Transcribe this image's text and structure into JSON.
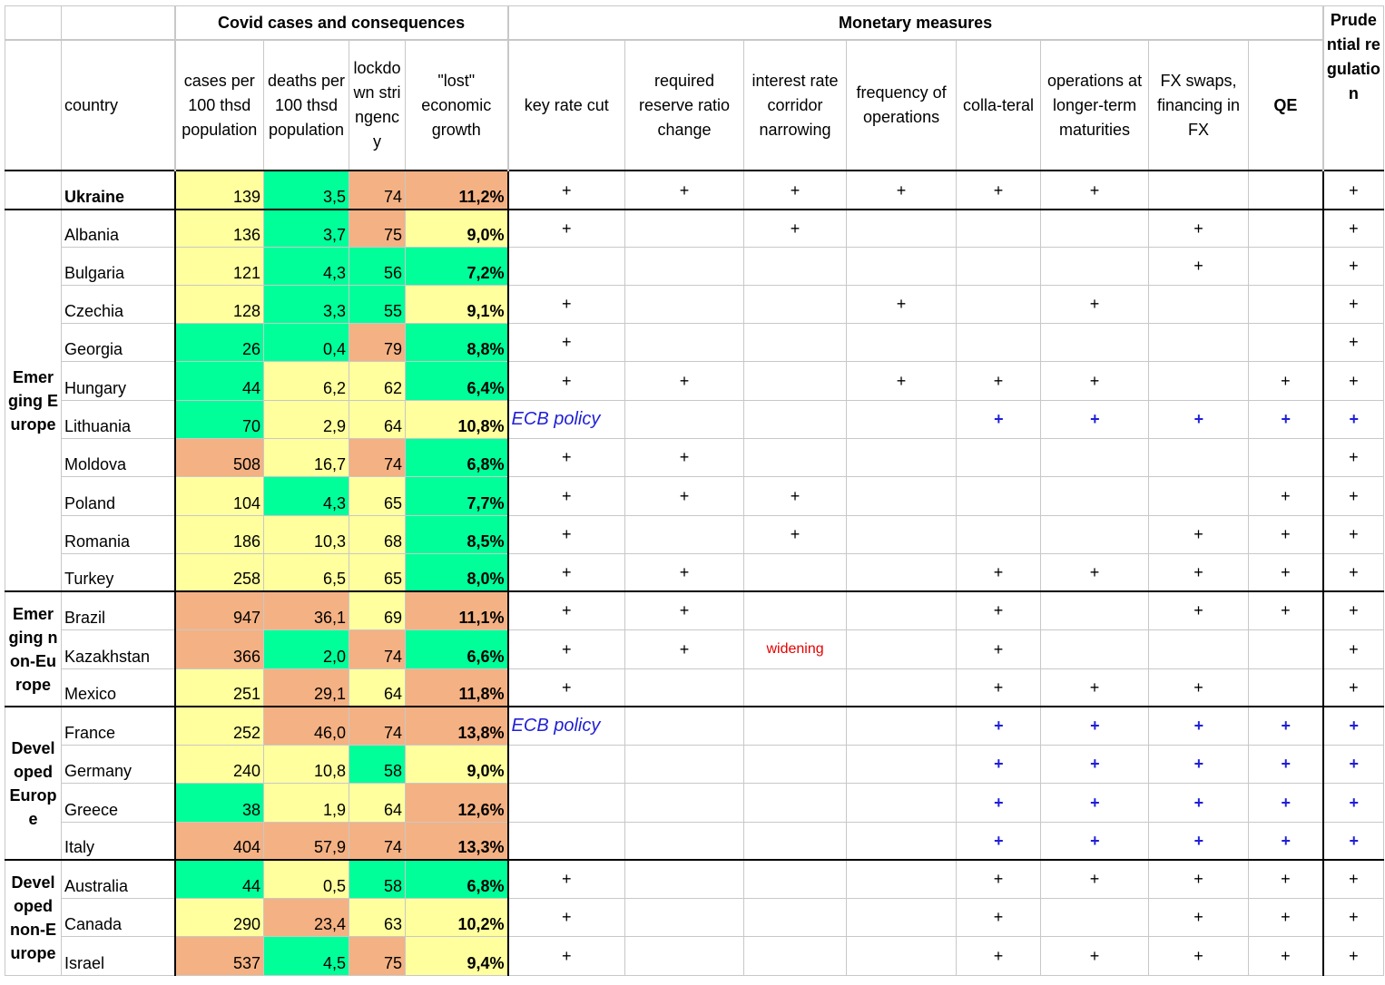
{
  "header": {
    "group_covid": "Covid cases and consequences",
    "group_monetary": "Monetary measures",
    "group_prudential": "Prudential regulation",
    "col_country": "country",
    "col_cases": "cases per 100 thsd population",
    "col_deaths": "deaths per 100 thsd population",
    "col_lockdown": "lockdown stringency",
    "col_lost": "\"lost\" economic growth",
    "col_keyrate": "key rate cut",
    "col_reserve": "required reserve ratio change",
    "col_corridor": "interest rate corridor narrowing",
    "col_frequency": "frequency of operations",
    "col_collateral": "colla-teral",
    "col_longer": "operations at longer-term maturities",
    "col_fx": "FX swaps, financing in FX",
    "col_qe": "QE"
  },
  "colors": {
    "yellow": "#ffff9e",
    "green": "#00ff99",
    "orange": "#f4b183",
    "ecb_blue": "#1f1fd6",
    "widening_red": "#e60000"
  },
  "regions": {
    "emerging_europe": "Emerging Europe",
    "emerging_non_europe": "Emerging non-Europe",
    "developed_europe": "Developed Europe",
    "developed_non_europe": "Developed non-Europe"
  },
  "rows": [
    {
      "country": "Ukraine",
      "cases": "139",
      "deaths": "3,5",
      "lockdown": "74",
      "lost": "11,2%",
      "key": "+",
      "reserve": "+",
      "corridor": "+",
      "freq": "+",
      "coll": "+",
      "longer": "+",
      "fx": "",
      "qe": "",
      "prud": "+"
    },
    {
      "country": "Albania",
      "cases": "136",
      "deaths": "3,7",
      "lockdown": "75",
      "lost": "9,0%",
      "key": "+",
      "reserve": "",
      "corridor": "+",
      "freq": "",
      "coll": "",
      "longer": "",
      "fx": "+",
      "qe": "",
      "prud": "+"
    },
    {
      "country": "Bulgaria",
      "cases": "121",
      "deaths": "4,3",
      "lockdown": "56",
      "lost": "7,2%",
      "key": "",
      "reserve": "",
      "corridor": "",
      "freq": "",
      "coll": "",
      "longer": "",
      "fx": "+",
      "qe": "",
      "prud": "+"
    },
    {
      "country": "Czechia",
      "cases": "128",
      "deaths": "3,3",
      "lockdown": "55",
      "lost": "9,1%",
      "key": "+",
      "reserve": "",
      "corridor": "",
      "freq": "+",
      "coll": "",
      "longer": "+",
      "fx": "",
      "qe": "",
      "prud": "+"
    },
    {
      "country": "Georgia",
      "cases": "26",
      "deaths": "0,4",
      "lockdown": "79",
      "lost": "8,8%",
      "key": "+",
      "reserve": "",
      "corridor": "",
      "freq": "",
      "coll": "",
      "longer": "",
      "fx": "",
      "qe": "",
      "prud": "+"
    },
    {
      "country": "Hungary",
      "cases": "44",
      "deaths": "6,2",
      "lockdown": "62",
      "lost": "6,4%",
      "key": "+",
      "reserve": "+",
      "corridor": "",
      "freq": "+",
      "coll": "+",
      "longer": "+",
      "fx": "",
      "qe": "+",
      "prud": "+"
    },
    {
      "country": "Lithuania",
      "cases": "70",
      "deaths": "2,9",
      "lockdown": "64",
      "lost": "10,8%",
      "ecb": "ECB policy",
      "coll": "+",
      "longer": "+",
      "fx": "+",
      "qe": "+",
      "prud": "+"
    },
    {
      "country": "Moldova",
      "cases": "508",
      "deaths": "16,7",
      "lockdown": "74",
      "lost": "6,8%",
      "key": "+",
      "reserve": "+",
      "corridor": "",
      "freq": "",
      "coll": "",
      "longer": "",
      "fx": "",
      "qe": "",
      "prud": "+"
    },
    {
      "country": "Poland",
      "cases": "104",
      "deaths": "4,3",
      "lockdown": "65",
      "lost": "7,7%",
      "key": "+",
      "reserve": "+",
      "corridor": "+",
      "freq": "",
      "coll": "",
      "longer": "",
      "fx": "",
      "qe": "+",
      "prud": "+"
    },
    {
      "country": "Romania",
      "cases": "186",
      "deaths": "10,3",
      "lockdown": "68",
      "lost": "8,5%",
      "key": "+",
      "reserve": "",
      "corridor": "+",
      "freq": "",
      "coll": "",
      "longer": "",
      "fx": "+",
      "qe": "+",
      "prud": "+"
    },
    {
      "country": "Turkey",
      "cases": "258",
      "deaths": "6,5",
      "lockdown": "65",
      "lost": "8,0%",
      "key": "+",
      "reserve": "+",
      "corridor": "",
      "freq": "",
      "coll": "+",
      "longer": "+",
      "fx": "+",
      "qe": "+",
      "prud": "+"
    },
    {
      "country": "Brazil",
      "cases": "947",
      "deaths": "36,1",
      "lockdown": "69",
      "lost": "11,1%",
      "key": "+",
      "reserve": "+",
      "corridor": "",
      "freq": "",
      "coll": "+",
      "longer": "",
      "fx": "+",
      "qe": "+",
      "prud": "+"
    },
    {
      "country": "Kazakhstan",
      "cases": "366",
      "deaths": "2,0",
      "lockdown": "74",
      "lost": "6,6%",
      "key": "+",
      "reserve": "+",
      "corridor": "widening",
      "freq": "",
      "coll": "+",
      "longer": "",
      "fx": "",
      "qe": "",
      "prud": "+"
    },
    {
      "country": "Mexico",
      "cases": "251",
      "deaths": "29,1",
      "lockdown": "64",
      "lost": "11,8%",
      "key": "+",
      "reserve": "",
      "corridor": "",
      "freq": "",
      "coll": "+",
      "longer": "+",
      "fx": "+",
      "qe": "",
      "prud": "+"
    },
    {
      "country": "France",
      "cases": "252",
      "deaths": "46,0",
      "lockdown": "74",
      "lost": "13,8%",
      "ecb": "ECB policy",
      "coll": "+",
      "longer": "+",
      "fx": "+",
      "qe": "+",
      "prud": "+"
    },
    {
      "country": "Germany",
      "cases": "240",
      "deaths": "10,8",
      "lockdown": "58",
      "lost": "9,0%",
      "coll": "+",
      "longer": "+",
      "fx": "+",
      "qe": "+",
      "prud": "+"
    },
    {
      "country": "Greece",
      "cases": "38",
      "deaths": "1,9",
      "lockdown": "64",
      "lost": "12,6%",
      "coll": "+",
      "longer": "+",
      "fx": "+",
      "qe": "+",
      "prud": "+"
    },
    {
      "country": "Italy",
      "cases": "404",
      "deaths": "57,9",
      "lockdown": "74",
      "lost": "13,3%",
      "coll": "+",
      "longer": "+",
      "fx": "+",
      "qe": "+",
      "prud": "+"
    },
    {
      "country": "Australia",
      "cases": "44",
      "deaths": "0,5",
      "lockdown": "58",
      "lost": "6,8%",
      "key": "+",
      "reserve": "",
      "corridor": "",
      "freq": "",
      "coll": "+",
      "longer": "+",
      "fx": "+",
      "qe": "+",
      "prud": "+"
    },
    {
      "country": "Canada",
      "cases": "290",
      "deaths": "23,4",
      "lockdown": "63",
      "lost": "10,2%",
      "key": "+",
      "reserve": "",
      "corridor": "",
      "freq": "",
      "coll": "+",
      "longer": "",
      "fx": "+",
      "qe": "+",
      "prud": "+"
    },
    {
      "country": "Israel",
      "cases": "537",
      "deaths": "4,5",
      "lockdown": "75",
      "lost": "9,4%",
      "key": "+",
      "reserve": "",
      "corridor": "",
      "freq": "",
      "coll": "+",
      "longer": "+",
      "fx": "+",
      "qe": "+",
      "prud": "+"
    }
  ]
}
